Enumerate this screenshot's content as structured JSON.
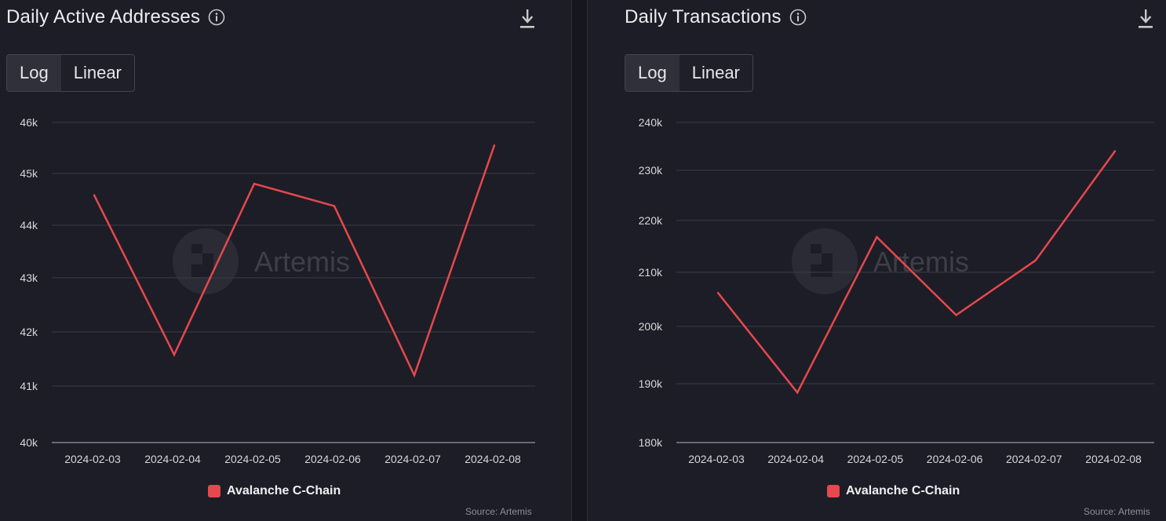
{
  "accent_color": "#e5484d",
  "charts": [
    {
      "title": "Daily Active Addresses",
      "toggle": {
        "options": [
          "Log",
          "Linear"
        ],
        "selected": "Log"
      },
      "watermark": "Artemis",
      "legend": "Avalanche C-Chain",
      "source": "Source: Artemis",
      "y_ticks": [
        "46k",
        "45k",
        "44k",
        "43k",
        "42k",
        "41k",
        "40k"
      ],
      "x_ticks": [
        "2024-02-03",
        "2024-02-04",
        "2024-02-05",
        "2024-02-06",
        "2024-02-07",
        "2024-02-08"
      ]
    },
    {
      "title": "Daily Transactions",
      "toggle": {
        "options": [
          "Log",
          "Linear"
        ],
        "selected": "Log"
      },
      "watermark": "Artemis",
      "legend": "Avalanche C-Chain",
      "source": "Source: Artemis",
      "y_ticks": [
        "240k",
        "230k",
        "220k",
        "210k",
        "200k",
        "190k",
        "180k"
      ],
      "x_ticks": [
        "2024-02-03",
        "2024-02-04",
        "2024-02-05",
        "2024-02-06",
        "2024-02-07",
        "2024-02-08"
      ]
    }
  ],
  "chart_data": [
    {
      "type": "line",
      "title": "Daily Active Addresses",
      "scale": "log",
      "x": [
        "2024-02-03",
        "2024-02-04",
        "2024-02-05",
        "2024-02-06",
        "2024-02-07",
        "2024-02-08"
      ],
      "series": [
        {
          "name": "Avalanche C-Chain",
          "values": [
            44580,
            41580,
            44800,
            44370,
            41200,
            45550
          ]
        }
      ],
      "y_tick_values": [
        46000,
        45000,
        44000,
        43000,
        42000,
        41000,
        40000
      ],
      "ylim": [
        40000,
        46000
      ],
      "grid": true,
      "legend_position": "bottom-center"
    },
    {
      "type": "line",
      "title": "Daily Transactions",
      "scale": "log",
      "x": [
        "2024-02-03",
        "2024-02-04",
        "2024-02-05",
        "2024-02-06",
        "2024-02-07",
        "2024-02-08"
      ],
      "series": [
        {
          "name": "Avalanche C-Chain",
          "values": [
            206200,
            188500,
            216800,
            202100,
            212300,
            234000
          ]
        }
      ],
      "y_tick_values": [
        240000,
        230000,
        220000,
        210000,
        200000,
        190000,
        180000
      ],
      "ylim": [
        180000,
        240000
      ],
      "grid": true,
      "legend_position": "bottom-center"
    }
  ]
}
